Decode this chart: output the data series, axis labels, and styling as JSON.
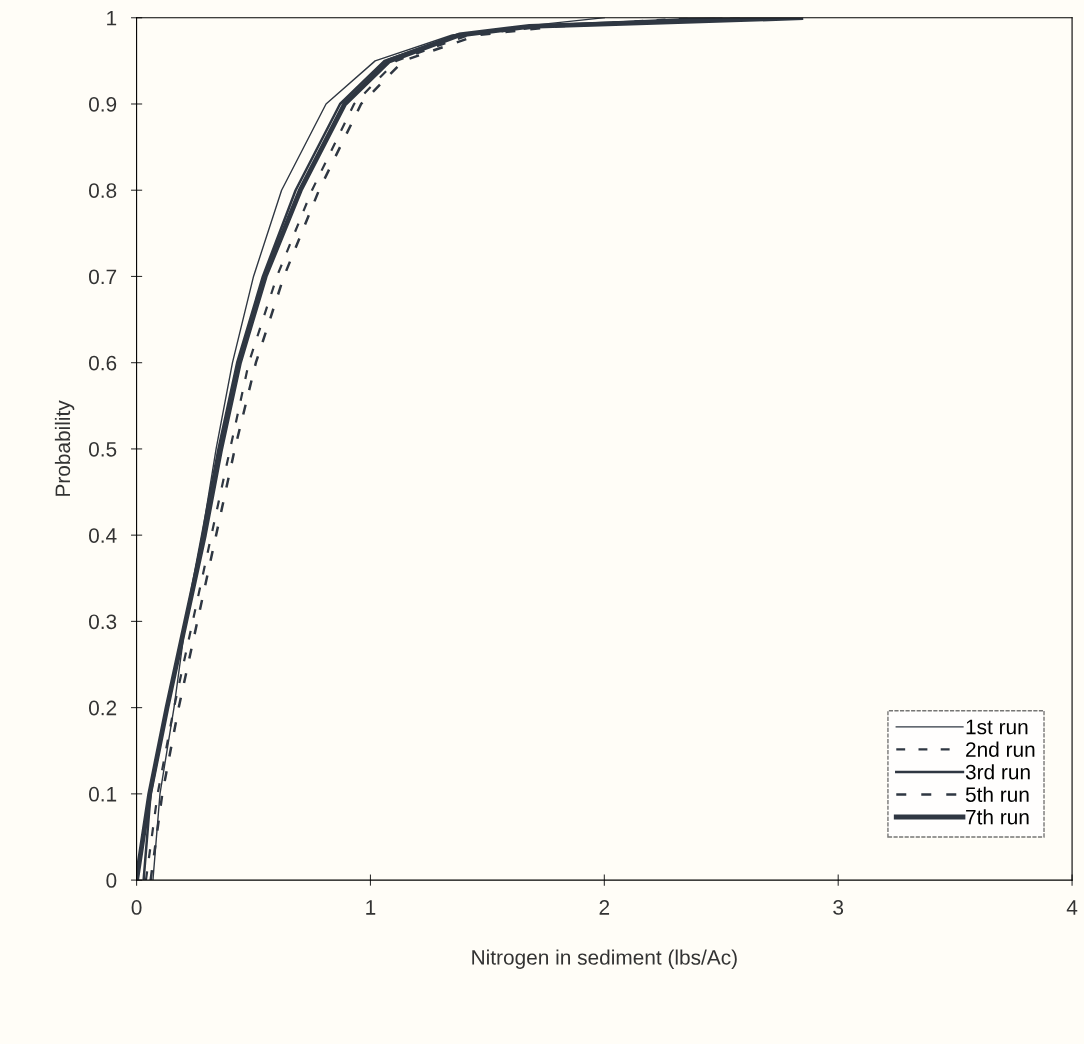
{
  "chart_data": {
    "type": "line",
    "xlabel": "Nitrogen in sediment (lbs/Ac)",
    "ylabel": "Probability",
    "xlim": [
      0,
      4
    ],
    "xticks": [
      0,
      1,
      2,
      3,
      4
    ],
    "ylim": [
      0,
      1
    ],
    "yticks": [
      0,
      0.1,
      0.2,
      0.3,
      0.4,
      0.5,
      0.6,
      0.7,
      0.8,
      0.9,
      1
    ],
    "grid": false,
    "legend": "bottom right",
    "marker": "none",
    "series": [
      {
        "name": "1st run",
        "color": "#2f3742",
        "line_style": "solid",
        "x": [
          0.07,
          0.1,
          0.16,
          0.21,
          0.28,
          0.34,
          0.41,
          0.5,
          0.62,
          0.81,
          1.02,
          1.35,
          1.65,
          2.0
        ],
        "values": [
          0,
          0.1,
          0.2,
          0.3,
          0.4,
          0.5,
          0.6,
          0.7,
          0.8,
          0.9,
          0.95,
          0.98,
          0.99,
          1
        ]
      },
      {
        "name": "2nd run",
        "color": "#2f3742",
        "line_style": "dashed",
        "x": [
          0.04,
          0.09,
          0.16,
          0.24,
          0.32,
          0.4,
          0.48,
          0.6,
          0.75,
          0.93,
          1.11,
          1.42,
          1.75,
          2.4
        ],
        "values": [
          0,
          0.1,
          0.2,
          0.3,
          0.4,
          0.5,
          0.6,
          0.7,
          0.8,
          0.9,
          0.95,
          0.98,
          0.99,
          1
        ]
      },
      {
        "name": "3rd run",
        "color": "#2f3742",
        "line_style": "solid",
        "x": [
          0.03,
          0.06,
          0.13,
          0.21,
          0.28,
          0.35,
          0.43,
          0.54,
          0.68,
          0.87,
          1.06,
          1.37,
          1.67,
          2.5
        ],
        "values": [
          0,
          0.1,
          0.2,
          0.3,
          0.4,
          0.5,
          0.6,
          0.7,
          0.8,
          0.9,
          0.95,
          0.98,
          0.99,
          1
        ]
      },
      {
        "name": "5th run",
        "color": "#2f3742",
        "line_style": "dashed",
        "x": [
          0.06,
          0.11,
          0.18,
          0.26,
          0.34,
          0.42,
          0.51,
          0.63,
          0.78,
          0.96,
          1.14,
          1.46,
          1.8,
          2.6
        ],
        "values": [
          0,
          0.1,
          0.2,
          0.3,
          0.4,
          0.5,
          0.6,
          0.7,
          0.8,
          0.9,
          0.95,
          0.98,
          0.99,
          1
        ]
      },
      {
        "name": "7th run",
        "color": "#2f3742",
        "line_style": "solid",
        "x": [
          0,
          0.056,
          0.13,
          0.21,
          0.29,
          0.36,
          0.44,
          0.55,
          0.7,
          0.89,
          1.08,
          1.38,
          1.68,
          2.84
        ],
        "values": [
          0,
          0.1,
          0.2,
          0.3,
          0.4,
          0.5,
          0.6,
          0.7,
          0.8,
          0.9,
          0.95,
          0.98,
          0.99,
          1
        ]
      }
    ]
  }
}
